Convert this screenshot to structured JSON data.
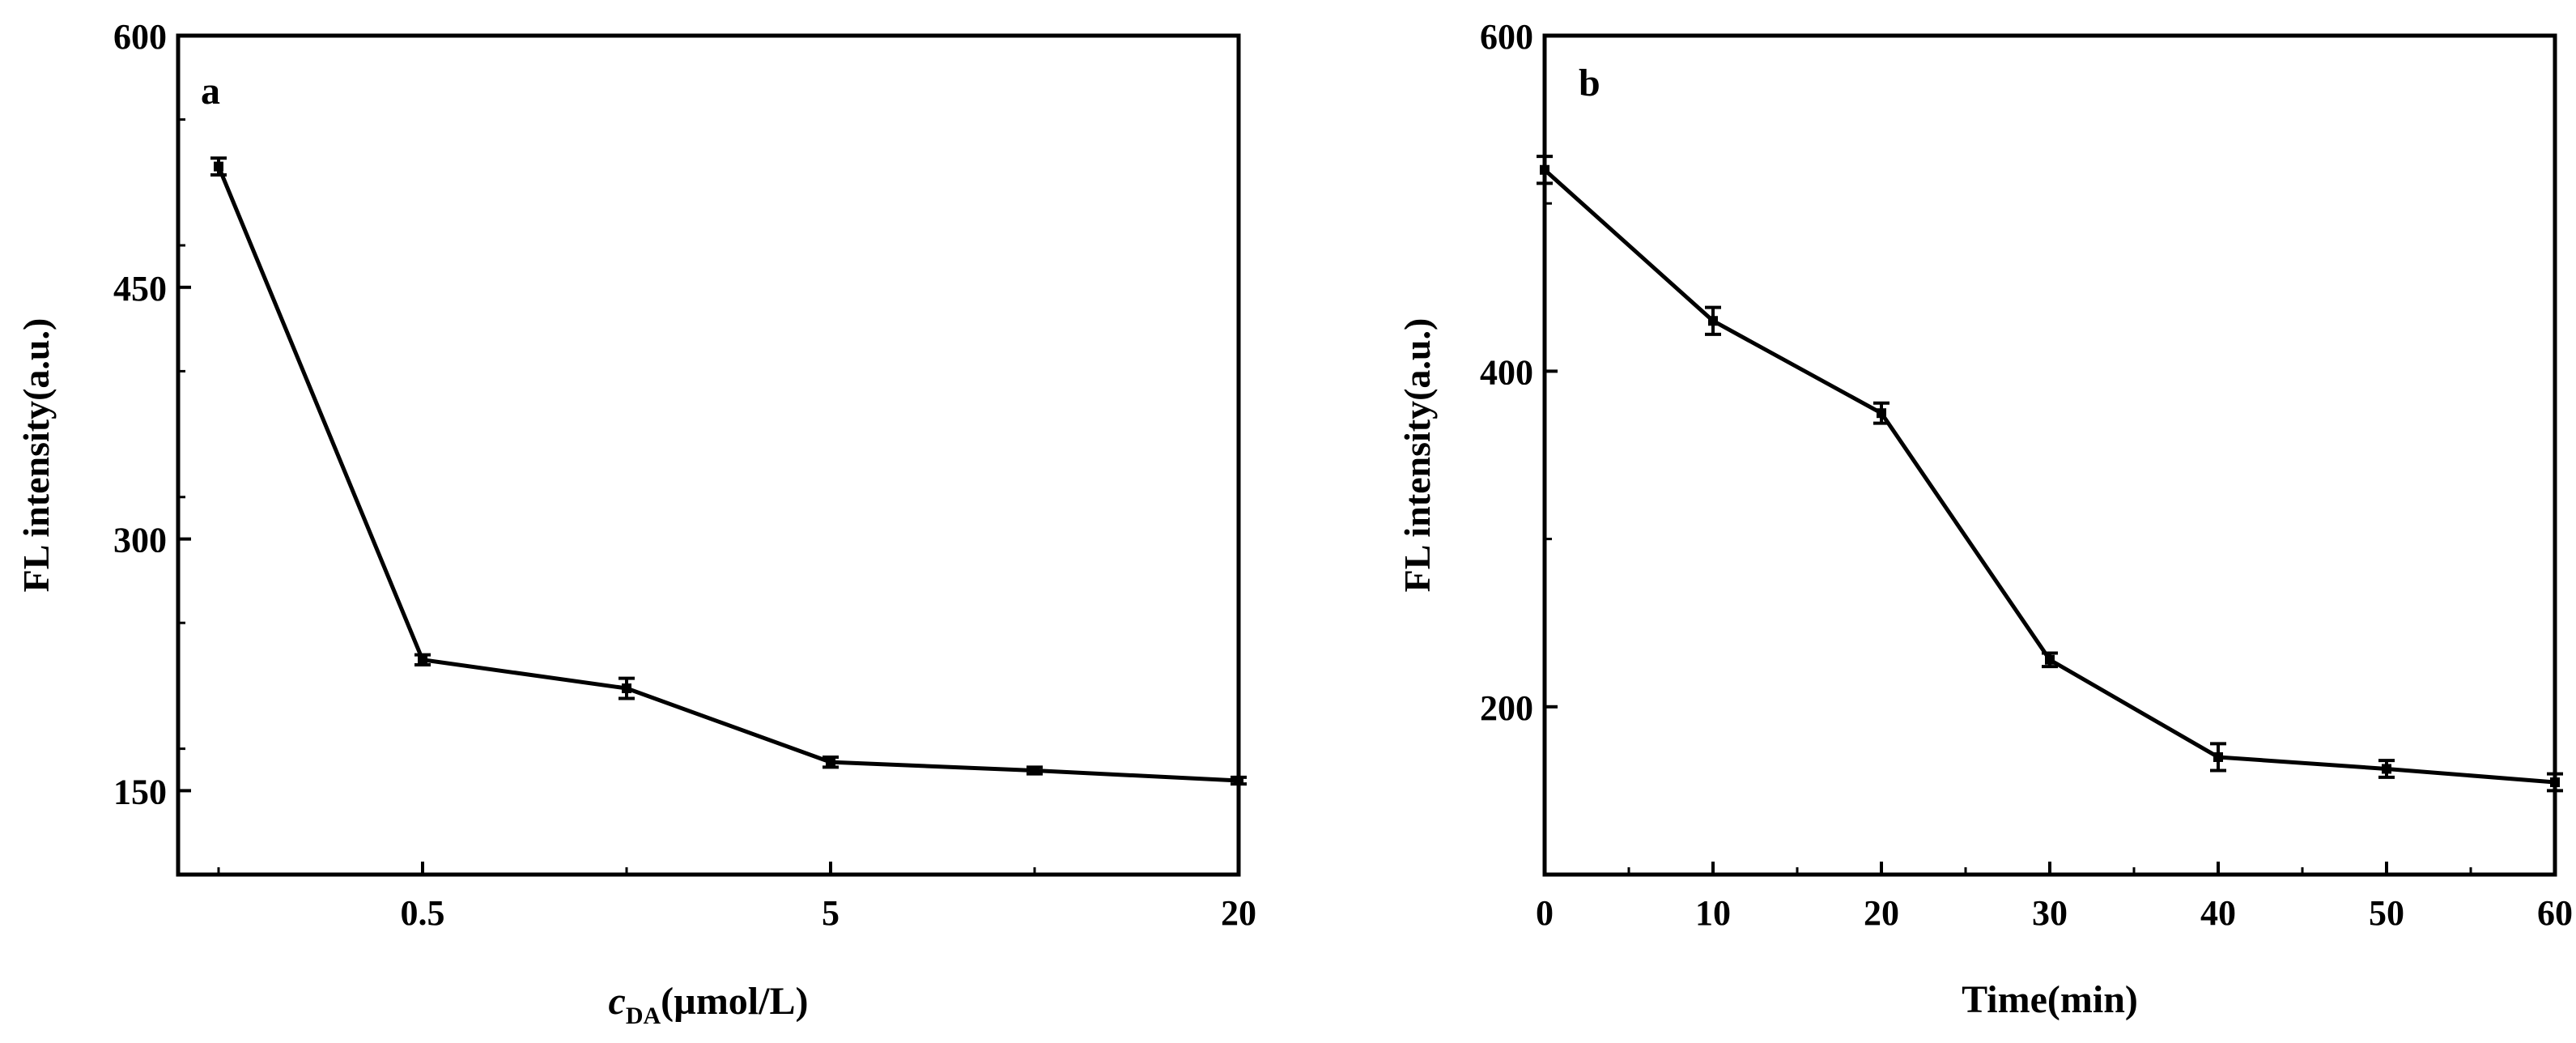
{
  "chart_data": [
    {
      "type": "line",
      "panel_label": "a",
      "xlabel_main": "c",
      "xlabel_sub": "DA",
      "xlabel_rest": "(µmol/L)",
      "ylabel": "FL intensity(a.u.)",
      "xscale": "categorical",
      "categories": [
        "",
        "0.5",
        "",
        "5",
        "",
        "20"
      ],
      "ylim": [
        100,
        600
      ],
      "yticks": [
        150,
        300,
        450,
        600
      ],
      "grid": false,
      "series": [
        {
          "values": [
            522,
            228,
            211,
            167,
            162,
            156
          ],
          "errors": [
            5,
            3,
            6,
            3,
            2,
            2
          ]
        }
      ]
    },
    {
      "type": "line",
      "panel_label": "b",
      "xlabel": "Time(min)",
      "ylabel": "FL intensity(a.u.)",
      "xlim": [
        0,
        60
      ],
      "xticks": [
        0,
        10,
        20,
        30,
        40,
        50,
        60
      ],
      "ylim": [
        100,
        600
      ],
      "yticks": [
        200,
        400,
        600
      ],
      "grid": false,
      "series": [
        {
          "x": [
            0,
            10,
            20,
            30,
            40,
            50,
            60
          ],
          "values": [
            520,
            430,
            375,
            228,
            170,
            163,
            155
          ],
          "errors": [
            8,
            8,
            6,
            4,
            8,
            5,
            5
          ]
        }
      ]
    }
  ]
}
